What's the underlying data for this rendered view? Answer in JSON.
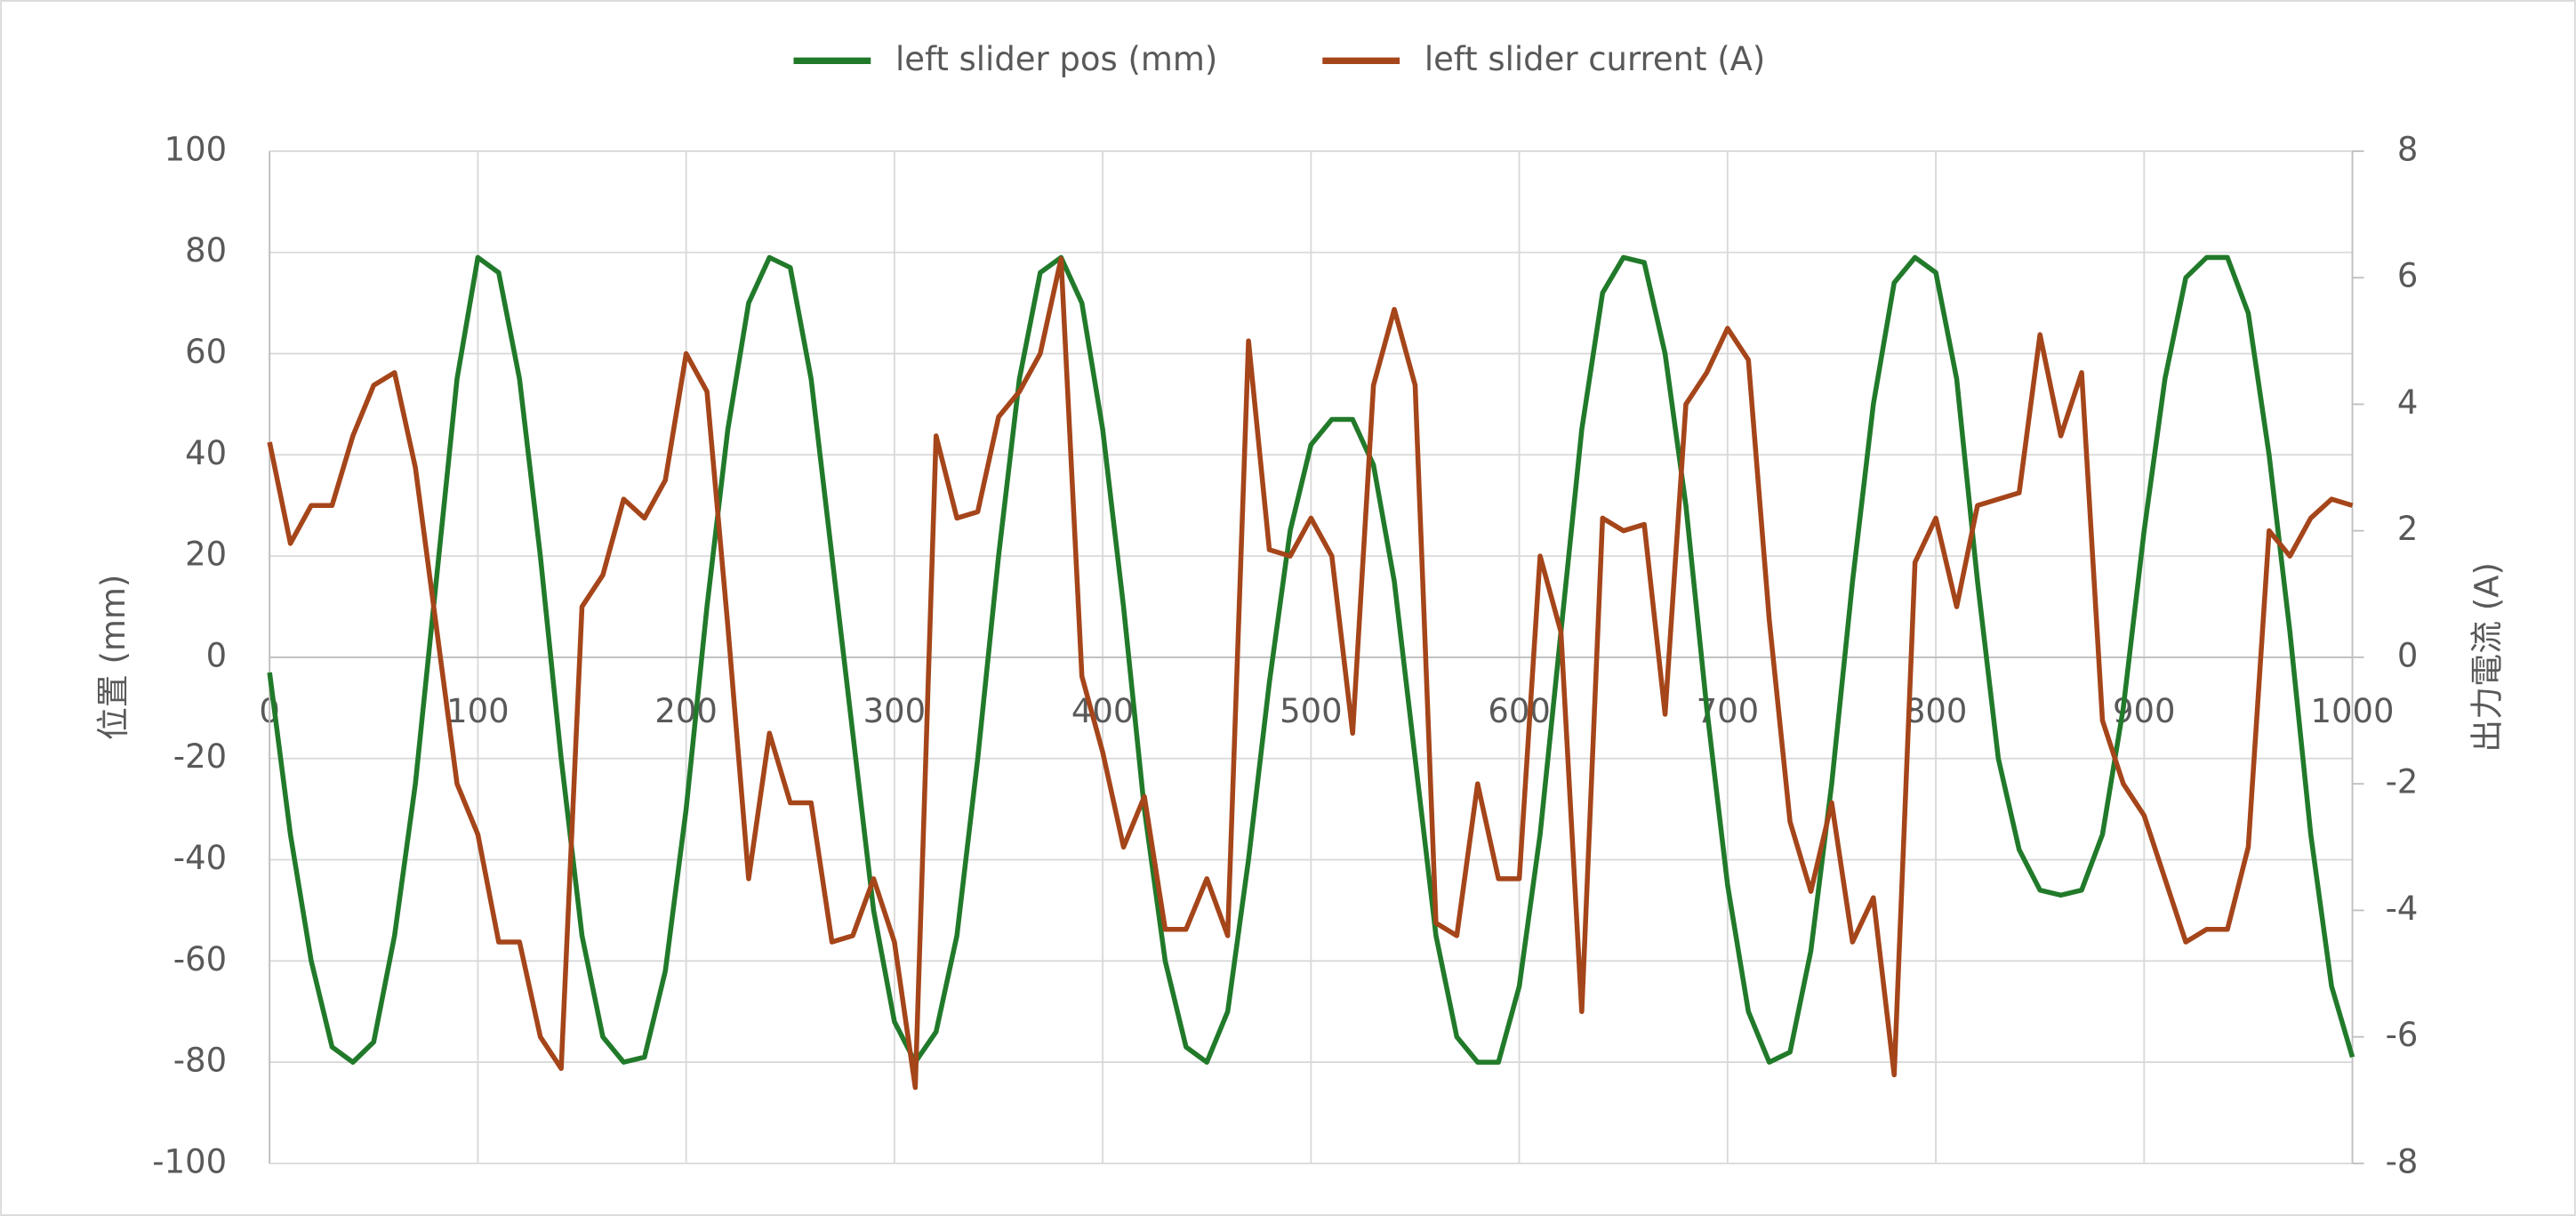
{
  "chart_data": {
    "type": "line",
    "x": [
      0,
      10,
      20,
      30,
      40,
      50,
      60,
      70,
      80,
      90,
      100,
      110,
      120,
      130,
      140,
      150,
      160,
      170,
      180,
      190,
      200,
      210,
      220,
      230,
      240,
      250,
      260,
      270,
      280,
      290,
      300,
      310,
      320,
      330,
      340,
      350,
      360,
      370,
      380,
      390,
      400,
      410,
      420,
      430,
      440,
      450,
      460,
      470,
      480,
      490,
      500,
      510,
      520,
      530,
      540,
      550,
      560,
      570,
      580,
      590,
      600,
      610,
      620,
      630,
      640,
      650,
      660,
      670,
      680,
      690,
      700,
      710,
      720,
      730,
      740,
      750,
      760,
      770,
      780,
      790,
      800,
      810,
      820,
      830,
      840,
      850,
      860,
      870,
      880,
      890,
      900,
      910,
      920,
      930,
      940,
      950,
      960,
      970,
      980,
      990,
      1000
    ],
    "series": [
      {
        "name": "left slider pos (mm)",
        "color": "#217a2a",
        "values": [
          -3,
          -35,
          -60,
          -77,
          -80,
          -76,
          -55,
          -25,
          15,
          55,
          79,
          76,
          55,
          20,
          -20,
          -55,
          -75,
          -80,
          -79,
          -62,
          -30,
          10,
          45,
          70,
          79,
          77,
          55,
          20,
          -15,
          -50,
          -72,
          -80,
          -74,
          -55,
          -20,
          20,
          55,
          76,
          79,
          70,
          45,
          10,
          -30,
          -60,
          -77,
          -80,
          -70,
          -40,
          -5,
          25,
          42,
          47,
          47,
          38,
          15,
          -20,
          -55,
          -75,
          -80,
          -80,
          -65,
          -35,
          5,
          45,
          72,
          79,
          78,
          60,
          30,
          -10,
          -45,
          -70,
          -80,
          -78,
          -58,
          -25,
          15,
          50,
          74,
          79,
          76,
          55,
          15,
          -20,
          -38,
          -46,
          -47,
          -46,
          -35,
          -10,
          25,
          55,
          75,
          79,
          79,
          68,
          40,
          5,
          -35,
          -65,
          -79
        ]
      },
      {
        "name": "left slider current (A)",
        "color": "#a5451a",
        "axis": "y2",
        "values": [
          3.4,
          1.8,
          2.4,
          2.4,
          3.5,
          4.3,
          4.5,
          3.0,
          0.5,
          -2.0,
          -2.8,
          -4.5,
          -4.5,
          -6.0,
          -6.5,
          0.8,
          1.3,
          2.5,
          2.2,
          2.8,
          4.8,
          4.2,
          0.5,
          -3.5,
          -1.2,
          -2.3,
          -2.3,
          -4.5,
          -4.4,
          -3.5,
          -4.5,
          -6.8,
          3.5,
          2.2,
          2.3,
          3.8,
          4.2,
          4.8,
          6.3,
          -0.3,
          -1.5,
          -3.0,
          -2.2,
          -4.3,
          -4.3,
          -3.5,
          -4.4,
          5.0,
          1.7,
          1.6,
          2.2,
          1.6,
          -1.2,
          4.3,
          5.5,
          4.3,
          -4.2,
          -4.4,
          -2.0,
          -3.5,
          -3.5,
          1.6,
          0.4,
          -5.6,
          2.2,
          2.0,
          2.1,
          -0.9,
          4.0,
          4.5,
          5.2,
          4.7,
          0.6,
          -2.6,
          -3.7,
          -2.3,
          -4.5,
          -3.8,
          -6.6,
          1.5,
          2.2,
          0.8,
          2.4,
          2.5,
          2.6,
          5.1,
          3.5,
          4.5,
          -1.0,
          -2.0,
          -2.5,
          -3.5,
          -4.5,
          -4.3,
          -4.3,
          -3.0,
          2.0,
          1.6,
          2.2,
          2.5,
          2.4
        ]
      }
    ],
    "xlim": [
      0,
      1000
    ],
    "xticks": [
      0,
      100,
      200,
      300,
      400,
      500,
      600,
      700,
      800,
      900,
      1000
    ],
    "ylim": [
      -100,
      100
    ],
    "yticks": [
      -100,
      -80,
      -60,
      -40,
      -20,
      0,
      20,
      40,
      60,
      80,
      100
    ],
    "y2lim": [
      -8,
      8
    ],
    "y2ticks": [
      -8,
      -6,
      -4,
      -2,
      0,
      2,
      4,
      6,
      8
    ],
    "ylabel": "位置 (mm)",
    "y2label": "出力電流 (A)",
    "grid": true,
    "legend": "top"
  }
}
